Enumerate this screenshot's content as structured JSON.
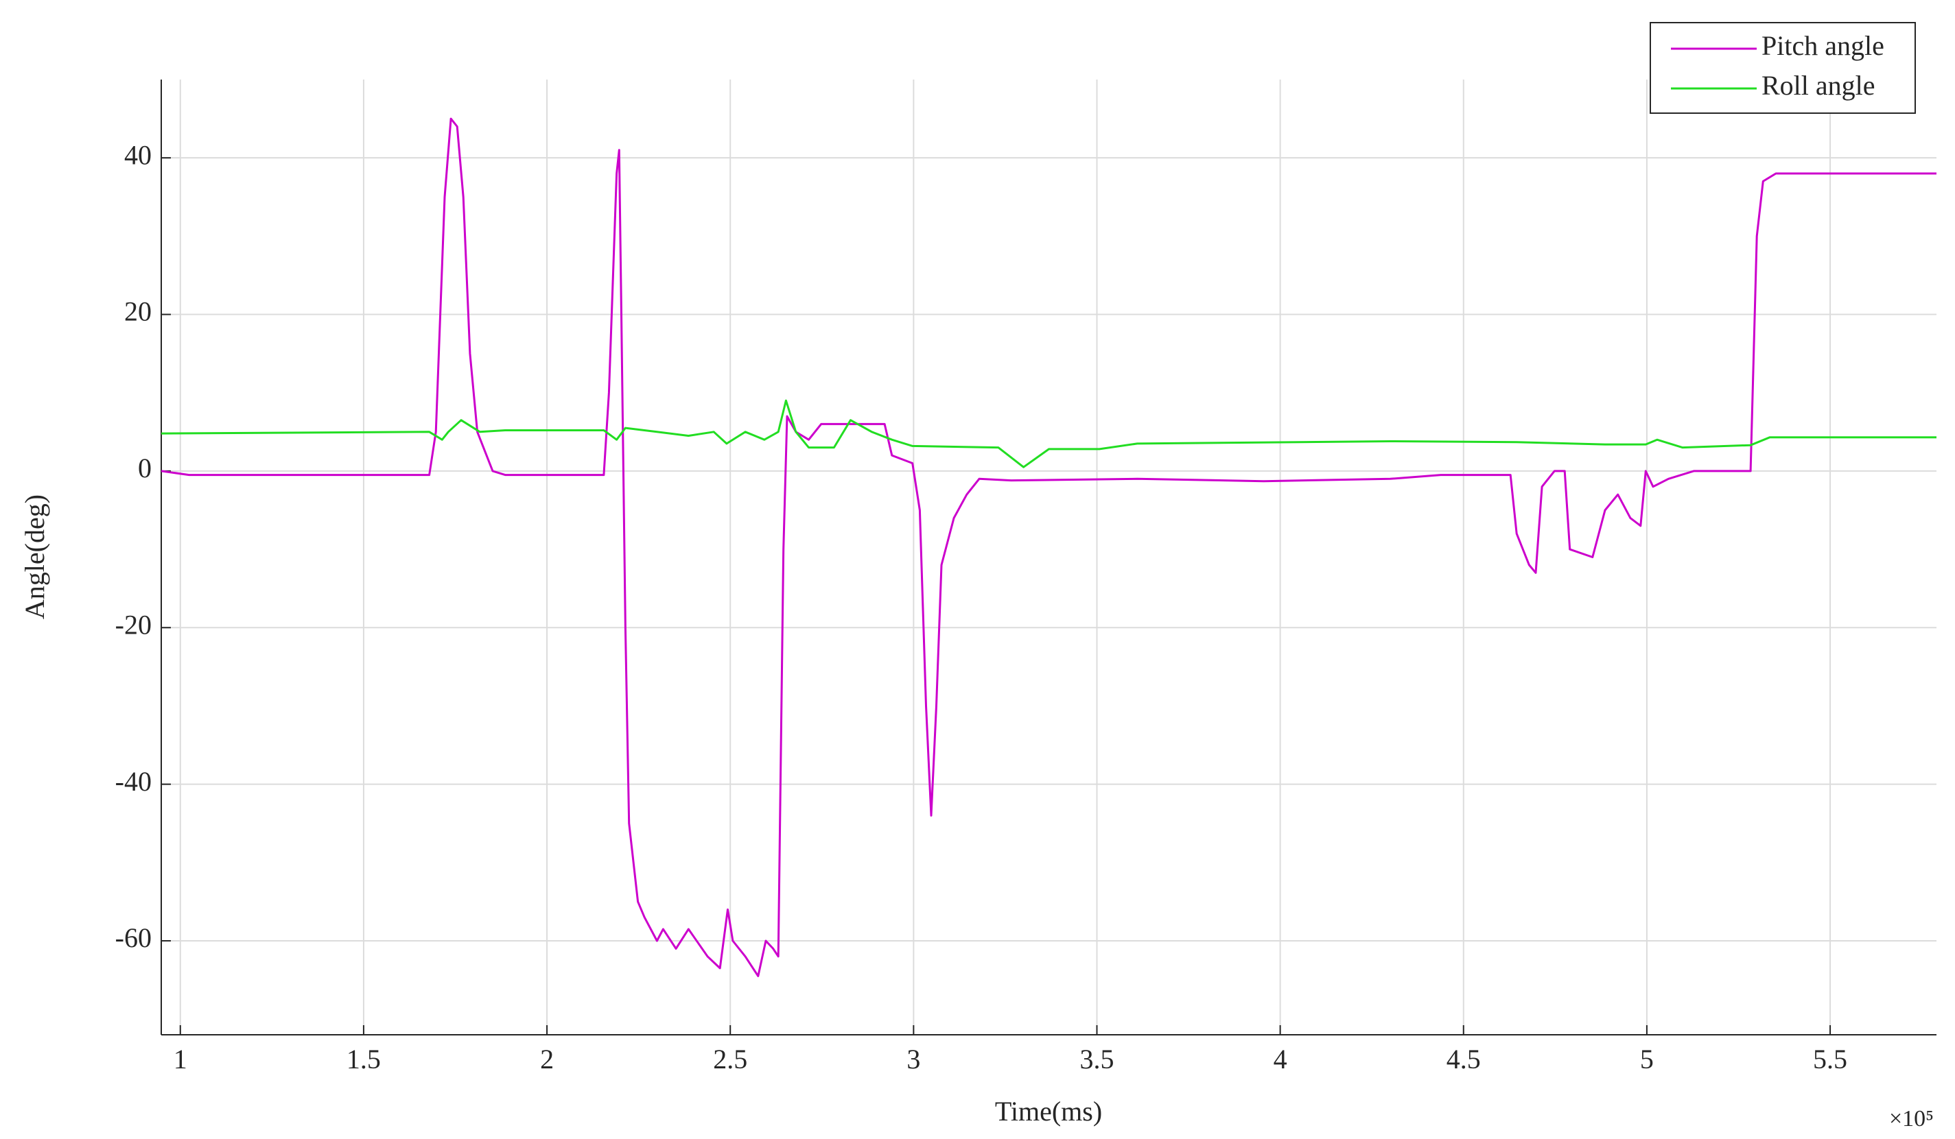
{
  "chart_data": {
    "type": "line",
    "x_label": "Time(ms)",
    "y_label": "Angle(deg)",
    "x_exponent_label": "×10⁵",
    "xlim": [
      0.948,
      5.79
    ],
    "ylim": [
      -72,
      50
    ],
    "xticks": [
      1,
      1.5,
      2,
      2.5,
      3,
      3.5,
      4,
      4.5,
      5,
      5.5
    ],
    "yticks": [
      -60,
      -40,
      -20,
      0,
      20,
      40
    ],
    "grid": true,
    "legend": "top-right",
    "series": [
      {
        "name": "Pitch angle",
        "color": "#cc00cc",
        "x": [
          0.948,
          1.024,
          1.679,
          1.697,
          1.721,
          1.738,
          1.755,
          1.772,
          1.79,
          1.81,
          1.852,
          1.886,
          2.155,
          2.169,
          2.19,
          2.197,
          2.203,
          2.214,
          2.224,
          2.248,
          2.266,
          2.3,
          2.317,
          2.352,
          2.386,
          2.438,
          2.472,
          2.493,
          2.507,
          2.541,
          2.576,
          2.597,
          2.617,
          2.631,
          2.645,
          2.655,
          2.679,
          2.714,
          2.748,
          2.921,
          2.941,
          2.997,
          3.017,
          3.034,
          3.048,
          3.062,
          3.076,
          3.11,
          3.145,
          3.179,
          3.266,
          3.61,
          3.955,
          4.3,
          4.438,
          4.628,
          4.645,
          4.679,
          4.697,
          4.714,
          4.748,
          4.776,
          4.79,
          4.852,
          4.886,
          4.921,
          4.955,
          4.983,
          4.997,
          5.017,
          5.059,
          5.128,
          5.283,
          5.3,
          5.317,
          5.352,
          5.79
        ],
        "values": [
          0,
          -0.5,
          -0.5,
          5,
          35,
          45,
          44,
          35,
          15,
          5,
          0,
          -0.5,
          -0.5,
          10,
          38,
          41,
          20,
          -20,
          -45,
          -55,
          -57,
          -60,
          -58.5,
          -61,
          -58.5,
          -62,
          -63.5,
          -56,
          -60,
          -62,
          -64.5,
          -60,
          -61,
          -62,
          -10,
          7,
          5,
          4,
          6,
          6,
          2,
          1,
          -5,
          -30,
          -44,
          -30,
          -12,
          -6,
          -3,
          -1,
          -1.2,
          -1,
          -1.3,
          -1,
          -0.5,
          -0.5,
          -8,
          -12,
          -13,
          -2,
          0,
          0,
          -10,
          -11,
          -5,
          -3,
          -6,
          -7,
          0,
          -2,
          -1,
          0,
          0,
          30,
          37,
          38,
          38
        ]
      },
      {
        "name": "Roll angle",
        "color": "#22dd22",
        "x": [
          0.948,
          1.679,
          1.714,
          1.731,
          1.766,
          1.817,
          1.886,
          2.155,
          2.19,
          2.214,
          2.3,
          2.386,
          2.455,
          2.49,
          2.541,
          2.593,
          2.631,
          2.652,
          2.679,
          2.714,
          2.783,
          2.828,
          2.886,
          2.941,
          2.997,
          3.231,
          3.3,
          3.369,
          3.507,
          3.61,
          4.3,
          4.645,
          4.886,
          4.997,
          5.028,
          5.097,
          5.283,
          5.335,
          5.79
        ],
        "values": [
          4.8,
          5,
          4,
          5,
          6.5,
          5,
          5.2,
          5.2,
          4,
          5.5,
          5,
          4.5,
          5,
          3.5,
          5,
          4,
          5,
          9,
          5,
          3,
          3,
          6.5,
          5,
          4,
          3.2,
          3,
          0.5,
          2.8,
          2.8,
          3.5,
          3.8,
          3.7,
          3.4,
          3.4,
          4,
          3,
          3.3,
          4.3,
          4.3
        ]
      }
    ]
  }
}
